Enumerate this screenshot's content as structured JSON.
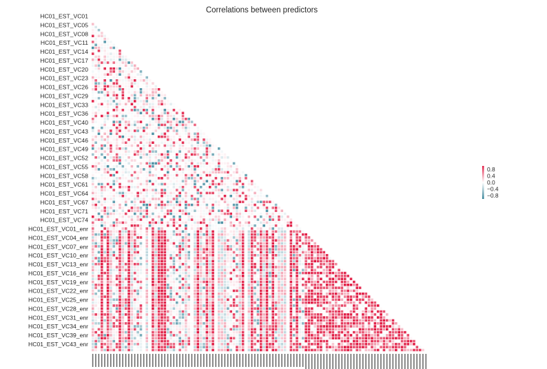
{
  "chart_data": {
    "type": "heatmap",
    "title": "Correlations between predictors",
    "xlabel": "",
    "ylabel": "",
    "mask": "upper-triangle",
    "value_range": [
      -1,
      1
    ],
    "colormap": {
      "negative": "#2f7f95",
      "neutral": "#ffffff",
      "positive": "#e0163f"
    },
    "colorbar": {
      "ticks": [
        0.8,
        0.4,
        0.0,
        -0.4,
        -0.8
      ],
      "tick_labels": [
        "0.8",
        "0.4",
        "0.0",
        "−0.4",
        "−0.8"
      ]
    },
    "group_first": {
      "n": 71
    },
    "group_second": {
      "n": 41
    },
    "y_tick_labels": [
      "HC01_EST_VC01",
      "HC01_EST_VC05",
      "HC01_EST_VC08",
      "HC01_EST_VC11",
      "HC01_EST_VC14",
      "HC01_EST_VC17",
      "HC01_EST_VC20",
      "HC01_EST_VC23",
      "HC01_EST_VC26",
      "HC01_EST_VC29",
      "HC01_EST_VC33",
      "HC01_EST_VC36",
      "HC01_EST_VC40",
      "HC01_EST_VC43",
      "HC01_EST_VC46",
      "HC01_EST_VC49",
      "HC01_EST_VC52",
      "HC01_EST_VC55",
      "HC01_EST_VC58",
      "HC01_EST_VC61",
      "HC01_EST_VC64",
      "HC01_EST_VC67",
      "HC01_EST_VC71",
      "HC01_EST_VC74",
      "HC01_EST_VC01_enr",
      "HC01_EST_VC04_enr",
      "HC01_EST_VC07_enr",
      "HC01_EST_VC10_enr",
      "HC01_EST_VC13_enr",
      "HC01_EST_VC16_enr",
      "HC01_EST_VC19_enr",
      "HC01_EST_VC22_enr",
      "HC01_EST_VC25_enr",
      "HC01_EST_VC28_enr",
      "HC01_EST_VC31_enr",
      "HC01_EST_VC34_enr",
      "HC01_EST_VC39_enr",
      "HC01_EST_VC43_enr"
    ],
    "x_tick_labels": "rotated variable names (illegible at this resolution)"
  }
}
